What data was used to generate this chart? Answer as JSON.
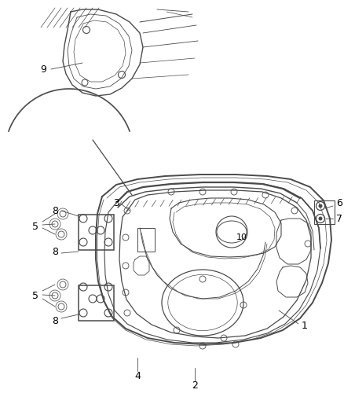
{
  "background_color": "#ffffff",
  "line_color": "#4a4a4a",
  "label_color": "#000000",
  "lw_outer": 1.4,
  "lw_inner": 0.8,
  "lw_thin": 0.5
}
